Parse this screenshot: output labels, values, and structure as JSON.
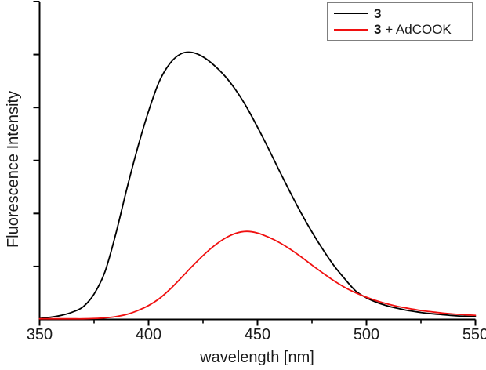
{
  "figure": {
    "background": "#ffffff",
    "axis_color": "#000000",
    "text_color": "#1a1a1a"
  },
  "legend": {
    "border_color": "#7f7f7f",
    "position": "top-right",
    "items": [
      {
        "swatch_color": "#000000",
        "bold": "3",
        "suffix": ""
      },
      {
        "swatch_color": "#f01010",
        "bold": "3",
        "suffix": " + AdCOOK"
      }
    ]
  },
  "chart_data": {
    "type": "line",
    "title": "",
    "xlabel": "wavelength [nm]",
    "ylabel": "Fluorescence Intensity",
    "xlim": [
      350,
      550
    ],
    "ylim": [
      0,
      1
    ],
    "x_major_ticks": [
      350,
      400,
      450,
      500,
      550
    ],
    "x_major_tick_labels": [
      "350",
      "400",
      "450",
      "500",
      "550"
    ],
    "x_minor_ticks": [
      375,
      425,
      475,
      525
    ],
    "y_major_tick_count": 7,
    "y_tick_labels_shown": false,
    "grid": false,
    "legend_position": "top-right",
    "x": [
      350,
      355,
      360,
      365,
      370,
      375,
      380,
      385,
      390,
      395,
      400,
      405,
      410,
      415,
      420,
      425,
      430,
      435,
      440,
      445,
      450,
      455,
      460,
      465,
      470,
      475,
      480,
      485,
      490,
      495,
      500,
      505,
      510,
      515,
      520,
      525,
      530,
      535,
      540,
      545,
      550
    ],
    "series": [
      {
        "name": "3",
        "color": "#000000",
        "values": [
          0.003,
          0.007,
          0.013,
          0.023,
          0.04,
          0.08,
          0.15,
          0.27,
          0.41,
          0.54,
          0.655,
          0.75,
          0.807,
          0.836,
          0.84,
          0.826,
          0.8,
          0.766,
          0.722,
          0.668,
          0.605,
          0.538,
          0.468,
          0.4,
          0.335,
          0.275,
          0.22,
          0.17,
          0.128,
          0.09,
          0.068,
          0.053,
          0.042,
          0.034,
          0.027,
          0.022,
          0.018,
          0.015,
          0.012,
          0.01,
          0.009
        ]
      },
      {
        "name": "3 + AdCOOK",
        "color": "#f01010",
        "values": [
          0.002,
          0.002,
          0.002,
          0.002,
          0.002,
          0.003,
          0.005,
          0.009,
          0.016,
          0.028,
          0.044,
          0.066,
          0.096,
          0.131,
          0.167,
          0.201,
          0.231,
          0.255,
          0.271,
          0.277,
          0.272,
          0.259,
          0.242,
          0.221,
          0.197,
          0.171,
          0.146,
          0.122,
          0.101,
          0.084,
          0.07,
          0.058,
          0.048,
          0.04,
          0.034,
          0.028,
          0.024,
          0.02,
          0.017,
          0.015,
          0.013
        ]
      }
    ]
  }
}
